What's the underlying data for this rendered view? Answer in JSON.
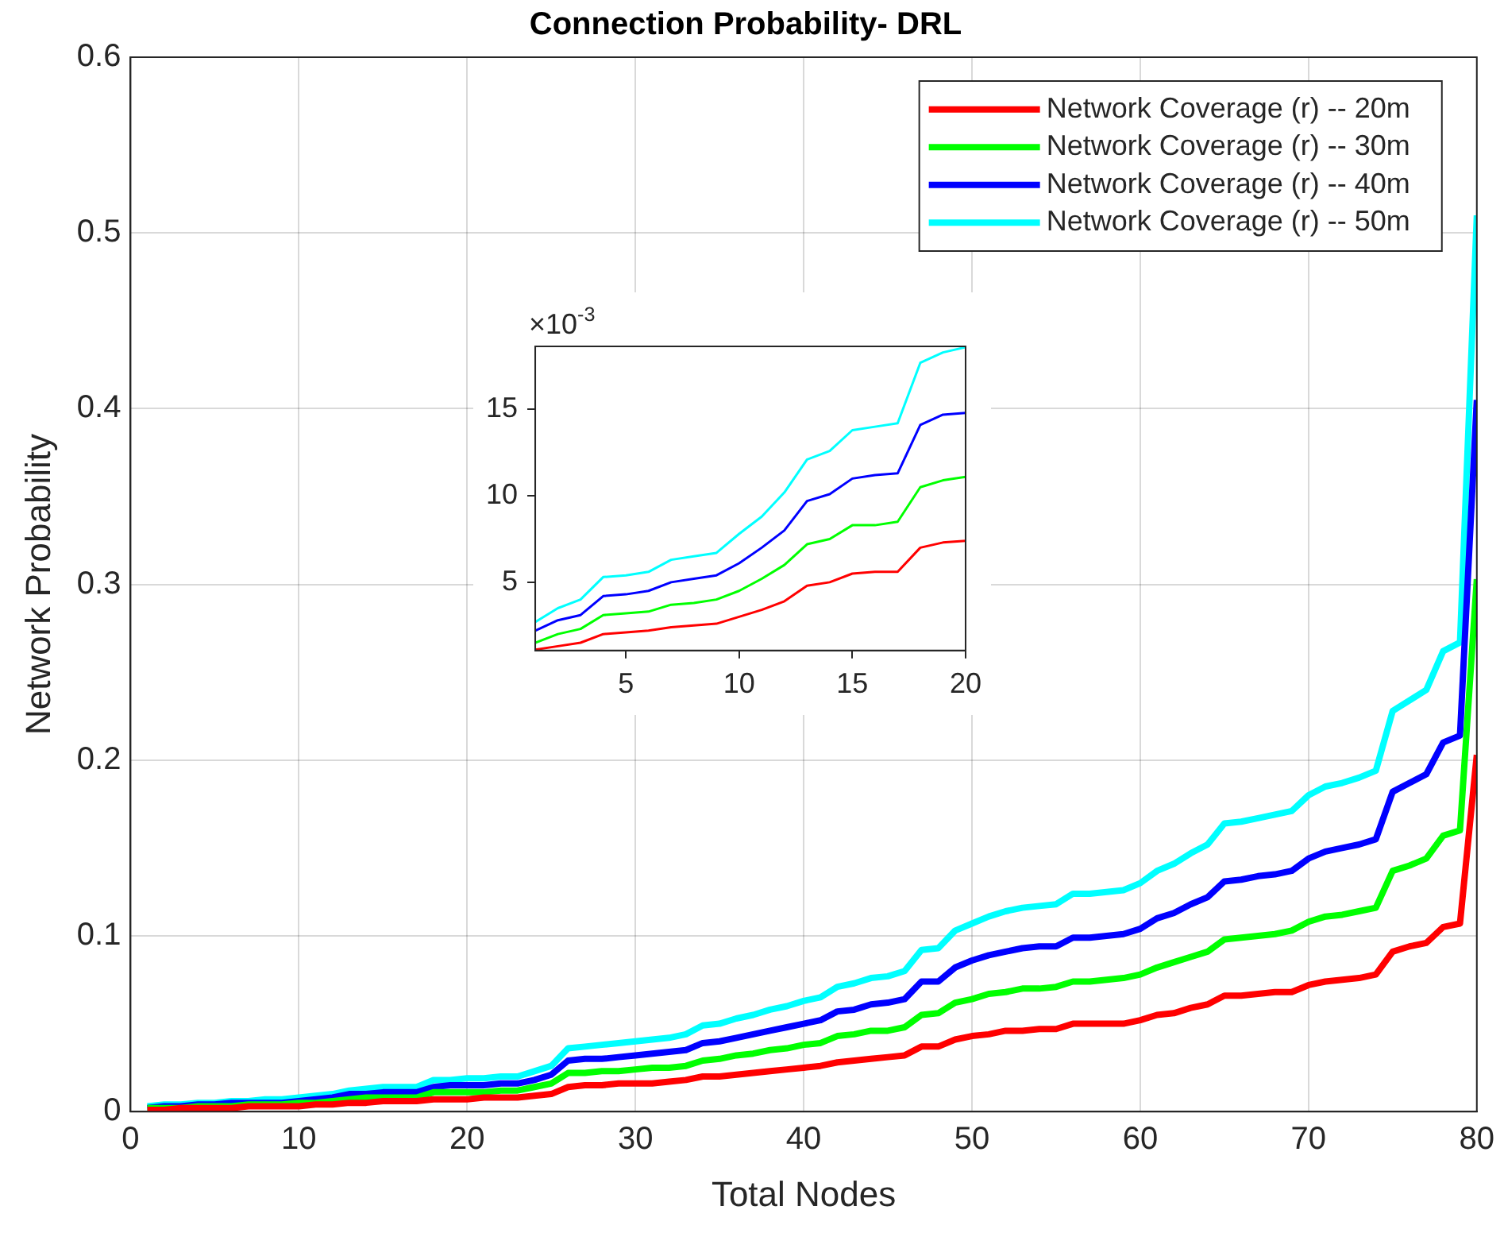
{
  "chart_data": [
    {
      "type": "line",
      "title": "Connection Probability- DRL",
      "xlabel": "Total Nodes",
      "ylabel": "Network Probability",
      "x": [
        1,
        2,
        3,
        4,
        5,
        6,
        7,
        8,
        9,
        10,
        11,
        12,
        13,
        14,
        15,
        16,
        17,
        18,
        19,
        20,
        21,
        22,
        23,
        24,
        25,
        26,
        27,
        28,
        29,
        30,
        31,
        32,
        33,
        34,
        35,
        36,
        37,
        38,
        39,
        40,
        41,
        42,
        43,
        44,
        45,
        46,
        47,
        48,
        49,
        50,
        51,
        52,
        53,
        54,
        55,
        56,
        57,
        58,
        59,
        60,
        61,
        62,
        63,
        64,
        65,
        66,
        67,
        68,
        69,
        70,
        71,
        72,
        73,
        74,
        75,
        76,
        77,
        78,
        79,
        80
      ],
      "xlim": [
        0,
        80
      ],
      "xticks": [
        0,
        10,
        20,
        30,
        40,
        50,
        60,
        70,
        80
      ],
      "ylim": [
        0,
        0.6
      ],
      "yticks": [
        0,
        0.1,
        0.2,
        0.3,
        0.4,
        0.5,
        0.6
      ],
      "grid": true,
      "legend": "top right",
      "series": [
        {
          "name": "Network Coverage (r) -- 20m",
          "color": "#ff0000",
          "values": [
            0.001,
            0.001,
            0.002,
            0.002,
            0.002,
            0.002,
            0.003,
            0.003,
            0.003,
            0.003,
            0.004,
            0.004,
            0.005,
            0.005,
            0.006,
            0.006,
            0.006,
            0.007,
            0.007,
            0.007,
            0.008,
            0.008,
            0.008,
            0.009,
            0.01,
            0.014,
            0.015,
            0.015,
            0.016,
            0.016,
            0.016,
            0.017,
            0.018,
            0.02,
            0.02,
            0.021,
            0.022,
            0.023,
            0.024,
            0.025,
            0.026,
            0.028,
            0.029,
            0.03,
            0.031,
            0.032,
            0.037,
            0.037,
            0.041,
            0.043,
            0.044,
            0.046,
            0.046,
            0.047,
            0.047,
            0.05,
            0.05,
            0.05,
            0.05,
            0.052,
            0.055,
            0.056,
            0.059,
            0.061,
            0.066,
            0.066,
            0.067,
            0.068,
            0.068,
            0.072,
            0.074,
            0.075,
            0.076,
            0.078,
            0.091,
            0.094,
            0.096,
            0.105,
            0.107,
            0.203
          ]
        },
        {
          "name": "Network Coverage (r) -- 30m",
          "color": "#00ff00",
          "values": [
            0.002,
            0.002,
            0.002,
            0.003,
            0.003,
            0.003,
            0.004,
            0.004,
            0.004,
            0.005,
            0.005,
            0.006,
            0.007,
            0.008,
            0.008,
            0.008,
            0.008,
            0.011,
            0.011,
            0.011,
            0.011,
            0.012,
            0.012,
            0.014,
            0.016,
            0.022,
            0.022,
            0.023,
            0.023,
            0.024,
            0.025,
            0.025,
            0.026,
            0.029,
            0.03,
            0.032,
            0.033,
            0.035,
            0.036,
            0.038,
            0.039,
            0.043,
            0.044,
            0.046,
            0.046,
            0.048,
            0.055,
            0.056,
            0.062,
            0.064,
            0.067,
            0.068,
            0.07,
            0.07,
            0.071,
            0.074,
            0.074,
            0.075,
            0.076,
            0.078,
            0.082,
            0.085,
            0.088,
            0.091,
            0.098,
            0.099,
            0.1,
            0.101,
            0.103,
            0.108,
            0.111,
            0.112,
            0.114,
            0.116,
            0.137,
            0.14,
            0.144,
            0.157,
            0.16,
            0.303
          ]
        },
        {
          "name": "Network Coverage (r) -- 40m",
          "color": "#0000ff",
          "values": [
            0.002,
            0.003,
            0.003,
            0.004,
            0.004,
            0.005,
            0.005,
            0.005,
            0.005,
            0.006,
            0.007,
            0.008,
            0.01,
            0.01,
            0.011,
            0.011,
            0.011,
            0.014,
            0.015,
            0.015,
            0.015,
            0.016,
            0.016,
            0.018,
            0.021,
            0.029,
            0.03,
            0.03,
            0.031,
            0.032,
            0.033,
            0.034,
            0.035,
            0.039,
            0.04,
            0.042,
            0.044,
            0.046,
            0.048,
            0.05,
            0.052,
            0.057,
            0.058,
            0.061,
            0.062,
            0.064,
            0.074,
            0.074,
            0.082,
            0.086,
            0.089,
            0.091,
            0.093,
            0.094,
            0.094,
            0.099,
            0.099,
            0.1,
            0.101,
            0.104,
            0.11,
            0.113,
            0.118,
            0.122,
            0.131,
            0.132,
            0.134,
            0.135,
            0.137,
            0.144,
            0.148,
            0.15,
            0.152,
            0.155,
            0.182,
            0.187,
            0.192,
            0.21,
            0.214,
            0.405
          ]
        },
        {
          "name": "Network Coverage (r) -- 50m",
          "color": "#00ffff",
          "values": [
            0.003,
            0.004,
            0.004,
            0.005,
            0.005,
            0.006,
            0.006,
            0.007,
            0.007,
            0.008,
            0.009,
            0.01,
            0.012,
            0.013,
            0.014,
            0.014,
            0.014,
            0.018,
            0.018,
            0.019,
            0.019,
            0.02,
            0.02,
            0.023,
            0.026,
            0.036,
            0.037,
            0.038,
            0.039,
            0.04,
            0.041,
            0.042,
            0.044,
            0.049,
            0.05,
            0.053,
            0.055,
            0.058,
            0.06,
            0.063,
            0.065,
            0.071,
            0.073,
            0.076,
            0.077,
            0.08,
            0.092,
            0.093,
            0.103,
            0.107,
            0.111,
            0.114,
            0.116,
            0.117,
            0.118,
            0.124,
            0.124,
            0.125,
            0.126,
            0.13,
            0.137,
            0.141,
            0.147,
            0.152,
            0.164,
            0.165,
            0.167,
            0.169,
            0.171,
            0.18,
            0.185,
            0.187,
            0.19,
            0.194,
            0.228,
            0.234,
            0.24,
            0.262,
            0.267,
            0.51
          ]
        }
      ]
    },
    {
      "type": "line",
      "annotations": [
        "×10$^{-3}$"
      ],
      "x": [
        1,
        2,
        3,
        4,
        5,
        6,
        7,
        8,
        9,
        10,
        11,
        12,
        13,
        14,
        15,
        16,
        17,
        18,
        19,
        20
      ],
      "xlim": [
        1,
        20
      ],
      "xticks": [
        5,
        10,
        15,
        20
      ],
      "ylim": [
        1.05,
        18.65
      ],
      "yticks": [
        5,
        10,
        15
      ],
      "series": [
        {
          "color": "#ff0000",
          "values": [
            1.1,
            1.3,
            1.5,
            2.0,
            2.1,
            2.2,
            2.4,
            2.5,
            2.6,
            3.0,
            3.4,
            3.9,
            4.8,
            5.0,
            5.5,
            5.6,
            5.6,
            7.0,
            7.3,
            7.4
          ]
        },
        {
          "color": "#00ff00",
          "values": [
            1.5,
            2.0,
            2.3,
            3.1,
            3.2,
            3.3,
            3.7,
            3.8,
            4.0,
            4.5,
            5.2,
            6.0,
            7.2,
            7.5,
            8.3,
            8.3,
            8.5,
            10.5,
            10.9,
            11.1
          ]
        },
        {
          "color": "#0000ff",
          "values": [
            2.2,
            2.8,
            3.1,
            4.2,
            4.3,
            4.5,
            5.0,
            5.2,
            5.4,
            6.1,
            7.0,
            8.0,
            9.7,
            10.1,
            11.0,
            11.2,
            11.3,
            14.1,
            14.7,
            14.8
          ]
        },
        {
          "color": "#00ffff",
          "values": [
            2.7,
            3.5,
            4.0,
            5.3,
            5.4,
            5.6,
            6.3,
            6.5,
            6.7,
            7.8,
            8.8,
            10.2,
            12.1,
            12.6,
            13.8,
            14.0,
            14.2,
            17.7,
            18.3,
            18.6
          ]
        }
      ]
    }
  ]
}
